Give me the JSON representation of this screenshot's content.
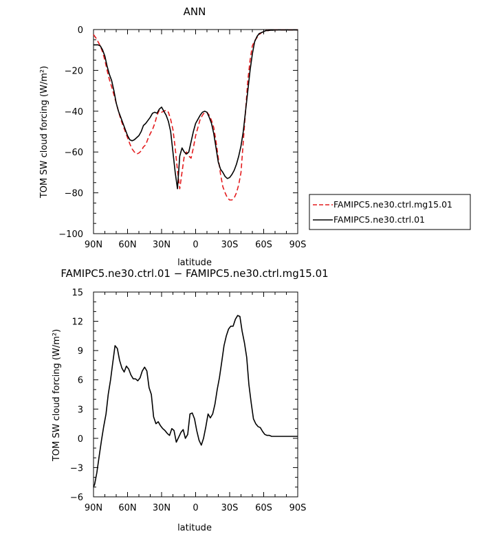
{
  "chart_data": [
    {
      "type": "line",
      "title": "ANN",
      "xlabel": "latitude",
      "ylabel": "TOM SW cloud forcing (W/m²)",
      "xlim": [
        90,
        -90
      ],
      "ylim": [
        -100,
        0
      ],
      "xticks": [
        90,
        60,
        30,
        0,
        -30,
        -60,
        -90
      ],
      "xtick_labels": [
        "90N",
        "60N",
        "30N",
        "0",
        "30S",
        "60S",
        "90S"
      ],
      "yticks": [
        0,
        -20,
        -40,
        -60,
        -80,
        -100
      ],
      "ytick_labels": [
        "0",
        "−20",
        "−40",
        "−60",
        "−80",
        "−100"
      ],
      "legend": "right",
      "series": [
        {
          "name": "FAMIPC5.ne30.ctrl.mg15.01",
          "color": "#e41a1c",
          "dash": true,
          "x": [
            90,
            88,
            86,
            84,
            82,
            80,
            78,
            76,
            74,
            72,
            70,
            68,
            66,
            64,
            62,
            60,
            58,
            56,
            54,
            52,
            50,
            48,
            46,
            44,
            42,
            40,
            38,
            36,
            34,
            32,
            30,
            28,
            26,
            24,
            22,
            20,
            18,
            16,
            14,
            12,
            10,
            8,
            6,
            4,
            2,
            0,
            -2,
            -4,
            -6,
            -8,
            -10,
            -12,
            -14,
            -16,
            -18,
            -20,
            -22,
            -24,
            -26,
            -28,
            -30,
            -32,
            -34,
            -36,
            -38,
            -40,
            -42,
            -44,
            -46,
            -48,
            -50,
            -52,
            -54,
            -56,
            -58,
            -60,
            -62,
            -64,
            -66,
            -68,
            -70,
            -72,
            -74,
            -76,
            -78,
            -80,
            -82,
            -84,
            -86,
            -88,
            -90
          ],
          "y": [
            -2.5,
            -4,
            -6,
            -8,
            -11,
            -15,
            -20,
            -24.5,
            -28,
            -32,
            -36,
            -40,
            -44,
            -47,
            -50,
            -53,
            -56,
            -58.5,
            -60,
            -61,
            -60.5,
            -59.5,
            -57.5,
            -56.5,
            -53.5,
            -51,
            -49,
            -46,
            -42,
            -39.5,
            -40.5,
            -40,
            -39.5,
            -40.5,
            -44,
            -49,
            -58,
            -69,
            -78,
            -70,
            -62,
            -60,
            -62,
            -63,
            -58,
            -52,
            -48,
            -44,
            -42,
            -40.5,
            -40.5,
            -42,
            -44.5,
            -48,
            -55,
            -63,
            -71,
            -77,
            -80,
            -82.5,
            -83.5,
            -83.5,
            -82.5,
            -80,
            -76,
            -70,
            -55,
            -40,
            -25,
            -15,
            -8,
            -5.5,
            -4,
            -2.5,
            -1.5,
            -1,
            -0.5,
            -0.5,
            -0.3,
            -0.3,
            -0.2,
            -0.2,
            -0.2,
            -0.2,
            -0.2,
            -0.2,
            -0.2,
            -0.2,
            -0.2,
            -0.2,
            -0.2
          ]
        },
        {
          "name": "FAMIPC5.ne30.ctrl.01",
          "color": "#000000",
          "dash": false,
          "x": [
            90,
            88,
            86,
            84,
            82,
            80,
            78,
            76,
            74,
            72,
            70,
            68,
            66,
            64,
            62,
            60,
            58,
            56,
            54,
            52,
            50,
            48,
            46,
            44,
            42,
            40,
            38,
            36,
            34,
            32,
            30,
            28,
            26,
            24,
            22,
            20,
            18,
            16,
            14,
            12,
            10,
            8,
            6,
            4,
            2,
            0,
            -2,
            -4,
            -6,
            -8,
            -10,
            -12,
            -14,
            -16,
            -18,
            -20,
            -22,
            -24,
            -26,
            -28,
            -30,
            -32,
            -34,
            -36,
            -38,
            -40,
            -42,
            -44,
            -46,
            -48,
            -50,
            -52,
            -54,
            -56,
            -58,
            -60,
            -62,
            -64,
            -66,
            -68,
            -70,
            -72,
            -74,
            -76,
            -78,
            -80,
            -82,
            -84,
            -86,
            -88,
            -90
          ],
          "y": [
            -7.5,
            -7.5,
            -7.5,
            -8,
            -10,
            -13,
            -18,
            -22,
            -25,
            -30,
            -36,
            -40,
            -43,
            -46,
            -49,
            -52,
            -54,
            -54.5,
            -54,
            -53,
            -52,
            -50,
            -47,
            -46,
            -44.5,
            -43,
            -41,
            -40.5,
            -41,
            -39,
            -38,
            -40,
            -42,
            -45,
            -50,
            -60,
            -70,
            -78,
            -62,
            -58,
            -60,
            -61,
            -60,
            -55,
            -50,
            -46,
            -44,
            -42,
            -40.5,
            -40,
            -40.5,
            -43,
            -46,
            -51,
            -58,
            -65,
            -68.5,
            -70,
            -72,
            -73,
            -72.5,
            -71,
            -69,
            -66,
            -62,
            -57,
            -50,
            -40,
            -30,
            -20,
            -12,
            -6,
            -3.5,
            -2,
            -1.5,
            -1,
            -0.5,
            -0.5,
            -0.3,
            -0.3,
            -0.2,
            -0.2,
            -0.2,
            -0.2,
            -0.2,
            -0.2,
            -0.2,
            -0.2,
            -0.2,
            -0.2,
            -0.2
          ]
        }
      ]
    },
    {
      "type": "line",
      "title": "FAMIPC5.ne30.ctrl.01 − FAMIPC5.ne30.ctrl.mg15.01",
      "xlabel": "latitude",
      "ylabel": "TOM SW cloud forcing (W/m²)",
      "xlim": [
        90,
        -90
      ],
      "ylim": [
        -6,
        15
      ],
      "xticks": [
        90,
        60,
        30,
        0,
        -30,
        -60,
        -90
      ],
      "xtick_labels": [
        "90N",
        "60N",
        "30N",
        "0",
        "30S",
        "60S",
        "90S"
      ],
      "yticks": [
        15,
        12,
        9,
        6,
        3,
        0,
        -3,
        -6
      ],
      "ytick_labels": [
        "15",
        "12",
        "9",
        "6",
        "3",
        "0",
        "−3",
        "−6"
      ],
      "series": [
        {
          "color": "#000000",
          "x": [
            90,
            89,
            87,
            85,
            83,
            81,
            79,
            77,
            75,
            73,
            71,
            69,
            67,
            65,
            63,
            61,
            59,
            57,
            55,
            53,
            51,
            49,
            47,
            45,
            43,
            41,
            39,
            37,
            35,
            33,
            31,
            29,
            27,
            25,
            23,
            21,
            19,
            17,
            15,
            13,
            11,
            9,
            7,
            5,
            3,
            1,
            -1,
            -3,
            -5,
            -7,
            -9,
            -11,
            -13,
            -15,
            -17,
            -19,
            -21,
            -23,
            -25,
            -27,
            -29,
            -31,
            -33,
            -35,
            -37,
            -39,
            -41,
            -43,
            -45,
            -47,
            -49,
            -51,
            -53,
            -55,
            -57,
            -59,
            -61,
            -63,
            -65,
            -67,
            -69,
            -71,
            -73,
            -75,
            -77,
            -79,
            -81,
            -83,
            -85,
            -87,
            -89,
            -90
          ],
          "y": [
            -5,
            -4.7,
            -3.5,
            -1.8,
            -0.2,
            1.2,
            2.5,
            4.5,
            6,
            7.8,
            9.5,
            9.2,
            8,
            7.2,
            6.8,
            7.4,
            7.1,
            6.5,
            6.1,
            6.1,
            5.9,
            6.2,
            6.9,
            7.3,
            6.9,
            5.2,
            4.5,
            2.2,
            1.5,
            1.7,
            1.3,
            1,
            0.8,
            0.5,
            0.3,
            1,
            0.8,
            -0.4,
            0.1,
            0.6,
            0.9,
            0,
            0.4,
            2.5,
            2.6,
            2,
            0.8,
            -0.2,
            -0.7,
            0,
            1.2,
            2.5,
            2.1,
            2.5,
            3.5,
            5,
            6.2,
            7.8,
            9.5,
            10.5,
            11.2,
            11.5,
            11.5,
            12.2,
            12.6,
            12.5,
            11,
            9.8,
            8.3,
            5.5,
            3.6,
            2,
            1.5,
            1.2,
            1.1,
            0.7,
            0.4,
            0.3,
            0.3,
            0.2,
            0.2,
            0.2,
            0.2,
            0.2,
            0.2,
            0.2,
            0.2,
            0.2,
            0.2,
            0.2,
            0.2,
            0.2
          ]
        }
      ]
    }
  ]
}
